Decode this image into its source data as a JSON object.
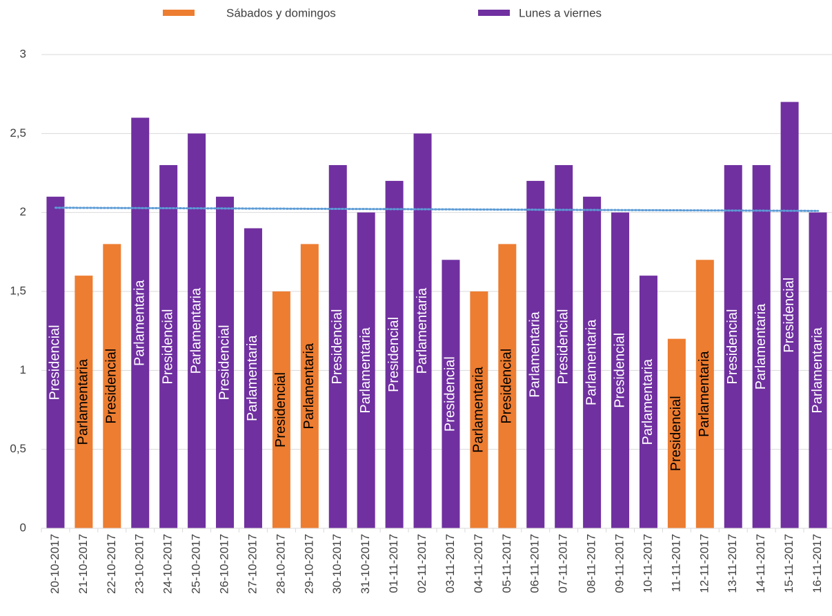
{
  "chart_data": {
    "type": "bar",
    "categories": [
      "20-10-2017",
      "21-10-2017",
      "22-10-2017",
      "23-10-2017",
      "24-10-2017",
      "25-10-2017",
      "26-10-2017",
      "27-10-2017",
      "28-10-2017",
      "29-10-2017",
      "30-10-2017",
      "31-10-2017",
      "01-11-2017",
      "02-11-2017",
      "03-11-2017",
      "04-11-2017",
      "05-11-2017",
      "06-11-2017",
      "07-11-2017",
      "08-11-2017",
      "09-11-2017",
      "10-11-2017",
      "11-11-2017",
      "12-11-2017",
      "13-11-2017",
      "14-11-2017",
      "15-11-2017",
      "16-11-2017"
    ],
    "series": [
      {
        "name": "Sábados y domingos",
        "color": "#ed7d31",
        "label_color": "#000000",
        "values": [
          null,
          1.6,
          1.8,
          null,
          null,
          null,
          null,
          null,
          1.5,
          1.8,
          null,
          null,
          null,
          null,
          null,
          1.5,
          1.8,
          null,
          null,
          null,
          null,
          null,
          1.2,
          1.7,
          null,
          null,
          null,
          null
        ]
      },
      {
        "name": "Lunes a viernes",
        "color": "#7030a0",
        "label_color": "#ffffff",
        "values": [
          2.1,
          null,
          null,
          2.6,
          2.3,
          2.5,
          2.1,
          1.9,
          null,
          null,
          2.3,
          2.0,
          2.2,
          2.5,
          1.7,
          null,
          null,
          2.2,
          2.3,
          2.1,
          2.0,
          1.6,
          null,
          null,
          2.3,
          2.3,
          2.7,
          2.0
        ]
      }
    ],
    "bar_labels": [
      "Presidencial",
      "Parlamentaria",
      "Presidencial",
      "Parlamentaria",
      "Presidencial",
      "Parlamentaria",
      "Presidencial",
      "Parlamentaria",
      "Presidencial",
      "Parlamentaria",
      "Presidencial",
      "Parlamentaria",
      "Presidencial",
      "Parlamentaria",
      "Presidencial",
      "Parlamentaria",
      "Presidencial",
      "Parlamentaria",
      "Presidencial",
      "Parlamentaria",
      "Presidencial",
      "Parlamentaria",
      "Presidencial",
      "Parlamentaria",
      "Presidencial",
      "Parlamentaria",
      "Presidencial",
      "Parlamentaria"
    ],
    "trendline": {
      "values": [
        2.03,
        2.01
      ],
      "color": "#5b9bd5"
    },
    "ylim": [
      0,
      3
    ],
    "yticks": [
      0,
      {
        "value": 0.5,
        "label": "0,5"
      },
      1,
      {
        "value": 1.5,
        "label": "1,5"
      },
      2,
      {
        "value": 2.5,
        "label": "2,5"
      },
      3
    ],
    "grid": true
  }
}
